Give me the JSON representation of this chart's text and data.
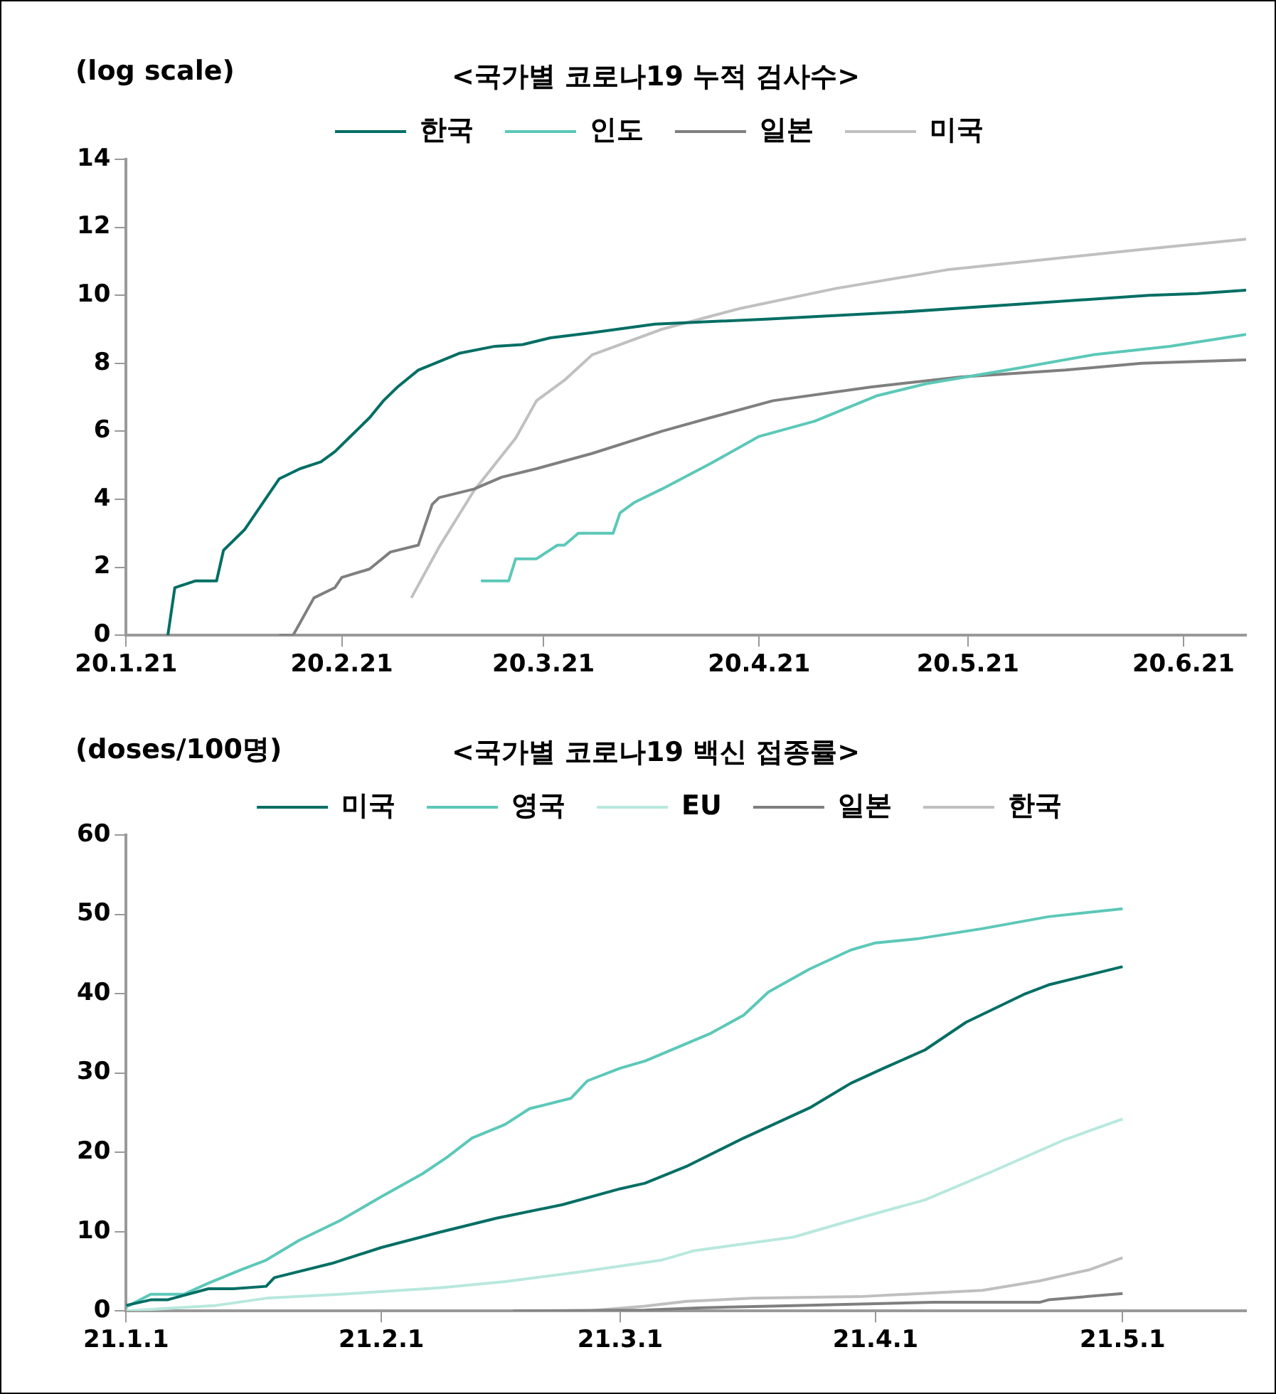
{
  "chart_data": [
    {
      "type": "line",
      "title": "<국가별 코로나19 누적 검사수>",
      "ylabel": "(log scale)",
      "xlim": [
        "--01-21",
        "--06-30"
      ],
      "xticks": [
        {
          "value": "--01-21",
          "label": "20.1.21"
        },
        {
          "value": "--02-21",
          "label": "20.2.21"
        },
        {
          "value": "--03-21",
          "label": "20.3.21"
        },
        {
          "value": "--04-21",
          "label": "20.4.21"
        },
        {
          "value": "--05-21",
          "label": "20.5.21"
        },
        {
          "value": "--06-21",
          "label": "20.6.21"
        }
      ],
      "ylim": [
        0,
        14
      ],
      "yticks": [
        0,
        2,
        4,
        6,
        8,
        10,
        12,
        14
      ],
      "grid": false,
      "legend": "top",
      "marker": "none",
      "line_style": "solid",
      "series": [
        {
          "name": "한국",
          "color": "#006e64",
          "x": [
            "--01-27",
            "--01-28",
            "--01-31",
            "--02-03",
            "--02-04",
            "--02-07",
            "--02-12",
            "--02-15",
            "--02-18",
            "--02-20",
            "--02-22",
            "--02-25",
            "--02-27",
            "--02-29",
            "--03-03",
            "--03-09",
            "--03-14",
            "--03-18",
            "--03-22",
            "--03-28",
            "--04-06",
            "--04-22",
            "--05-11",
            "--05-29",
            "--06-16",
            "--06-23",
            "--06-30"
          ],
          "values": [
            0,
            1.4,
            1.6,
            1.6,
            2.5,
            3.1,
            4.6,
            4.9,
            5.1,
            5.4,
            5.8,
            6.4,
            6.9,
            7.3,
            7.8,
            8.3,
            8.5,
            8.55,
            8.75,
            8.9,
            9.15,
            9.3,
            9.5,
            9.75,
            10,
            10.05,
            10.15
          ]
        },
        {
          "name": "인도",
          "color": "#5cc8b8",
          "x": [
            "--03-12",
            "--03-16",
            "--03-17",
            "--03-20",
            "--03-23",
            "--03-24",
            "--03-26",
            "--03-31",
            "--04-01",
            "--04-03",
            "--04-07",
            "--04-14",
            "--04-21",
            "--04-29",
            "--05-08",
            "--05-15",
            "--05-28",
            "--06-08",
            "--06-19",
            "--06-30"
          ],
          "values": [
            1.6,
            1.6,
            2.25,
            2.25,
            2.65,
            2.65,
            3,
            3,
            3.6,
            3.9,
            4.3,
            5.05,
            5.85,
            6.3,
            7.05,
            7.4,
            7.85,
            8.25,
            8.5,
            8.85
          ]
        },
        {
          "name": "일본",
          "color": "#7f7f7f",
          "x": [
            "--02-12",
            "--02-14",
            "--02-17",
            "--02-20",
            "--02-21",
            "--02-25",
            "--02-28",
            "--03-03",
            "--03-05",
            "--03-06",
            "--03-11",
            "--03-15",
            "--03-20",
            "--03-28",
            "--04-07",
            "--04-14",
            "--04-23",
            "--05-07",
            "--05-20",
            "--06-04",
            "--06-15",
            "--06-30"
          ],
          "values": [
            0,
            0,
            1.1,
            1.4,
            1.7,
            1.95,
            2.45,
            2.65,
            3.85,
            4.05,
            4.3,
            4.65,
            4.9,
            5.35,
            6,
            6.4,
            6.9,
            7.3,
            7.6,
            7.8,
            8,
            8.1
          ]
        },
        {
          "name": "미국",
          "color": "#c0c0c0",
          "x": [
            "--03-02",
            "--03-06",
            "--03-11",
            "--03-17",
            "--03-20",
            "--03-24",
            "--03-28",
            "--04-07",
            "--04-18",
            "--05-02",
            "--05-18",
            "--06-01",
            "--06-15",
            "--06-30"
          ],
          "values": [
            1.1,
            2.6,
            4.25,
            5.8,
            6.9,
            7.5,
            8.25,
            9,
            9.6,
            10.2,
            10.75,
            11.05,
            11.35,
            11.65
          ]
        }
      ]
    },
    {
      "type": "line",
      "title": "<국가별 코로나19 백신 접종률>",
      "ylabel": "(doses/100명)",
      "xlim": [
        "--01-01",
        "--05-16"
      ],
      "xticks": [
        {
          "value": "--01-01",
          "label": "21.1.1"
        },
        {
          "value": "--02-01",
          "label": "21.2.1"
        },
        {
          "value": "--03-01",
          "label": "21.3.1"
        },
        {
          "value": "--04-01",
          "label": "21.4.1"
        },
        {
          "value": "--05-01",
          "label": "21.5.1"
        }
      ],
      "ylim": [
        0,
        60
      ],
      "yticks": [
        0,
        10,
        20,
        30,
        40,
        50,
        60
      ],
      "grid": false,
      "legend": "top",
      "marker": "none",
      "line_style": "solid",
      "series": [
        {
          "name": "미국",
          "color": "#006e64",
          "x": [
            "--01-01",
            "--01-04",
            "--01-06",
            "--01-11",
            "--01-14",
            "--01-18",
            "--01-19",
            "--01-26",
            "--02-01",
            "--02-08",
            "--02-15",
            "--02-23",
            "--03-01",
            "--03-04",
            "--03-09",
            "--03-16",
            "--03-24",
            "--03-29",
            "--04-02",
            "--04-07",
            "--04-12",
            "--04-19",
            "--04-22",
            "--05-01"
          ],
          "values": [
            0.7,
            1.4,
            1.4,
            2.8,
            2.8,
            3.1,
            4.2,
            6,
            8,
            9.9,
            11.7,
            13.4,
            15.4,
            16.1,
            18.2,
            21.8,
            25.6,
            28.7,
            30.6,
            32.9,
            36.4,
            39.9,
            41.1,
            43.4
          ]
        },
        {
          "name": "영국",
          "color": "#5cc8b8",
          "x": [
            "--01-01",
            "--01-04",
            "--01-08",
            "--01-11",
            "--01-15",
            "--01-18",
            "--01-22",
            "--01-27",
            "--02-01",
            "--02-06",
            "--02-09",
            "--02-12",
            "--02-16",
            "--02-19",
            "--02-24",
            "--02-26",
            "--03-01",
            "--03-04",
            "--03-12",
            "--03-16",
            "--03-19",
            "--03-24",
            "--03-29",
            "--04-01",
            "--04-06",
            "--04-14",
            "--04-22",
            "--05-01"
          ],
          "values": [
            0.5,
            2.1,
            2.1,
            3.5,
            5.2,
            6.4,
            8.9,
            11.4,
            14.4,
            17.3,
            19.4,
            21.8,
            23.5,
            25.5,
            26.8,
            29,
            30.6,
            31.5,
            35,
            37.3,
            40.2,
            43.1,
            45.5,
            46.4,
            46.9,
            48.2,
            49.7,
            50.7
          ]
        },
        {
          "name": "EU",
          "color": "#b8e8de",
          "x": [
            "--01-01",
            "--01-12",
            "--01-18",
            "--01-27",
            "--02-02",
            "--02-08",
            "--02-16",
            "--02-25",
            "--03-06",
            "--03-10",
            "--03-22",
            "--03-30",
            "--04-07",
            "--04-15",
            "--04-24",
            "--05-01"
          ],
          "values": [
            0,
            0.7,
            1.6,
            2.1,
            2.5,
            2.9,
            3.7,
            4.9,
            6.4,
            7.6,
            9.3,
            11.7,
            14,
            17.5,
            21.6,
            24.2
          ]
        },
        {
          "name": "일본",
          "color": "#7f7f7f",
          "x": [
            "--02-17",
            "--03-04",
            "--03-11",
            "--03-23",
            "--04-08",
            "--04-21",
            "--04-22",
            "--05-01"
          ],
          "values": [
            0,
            0.1,
            0.4,
            0.7,
            1.1,
            1.1,
            1.4,
            2.2
          ]
        },
        {
          "name": "한국",
          "color": "#bfbfbf",
          "x": [
            "--02-26",
            "--03-04",
            "--03-09",
            "--03-17",
            "--03-30",
            "--04-14",
            "--04-21",
            "--04-27",
            "--05-01"
          ],
          "values": [
            0,
            0.6,
            1.2,
            1.6,
            1.8,
            2.6,
            3.8,
            5.2,
            6.7
          ]
        }
      ]
    }
  ]
}
